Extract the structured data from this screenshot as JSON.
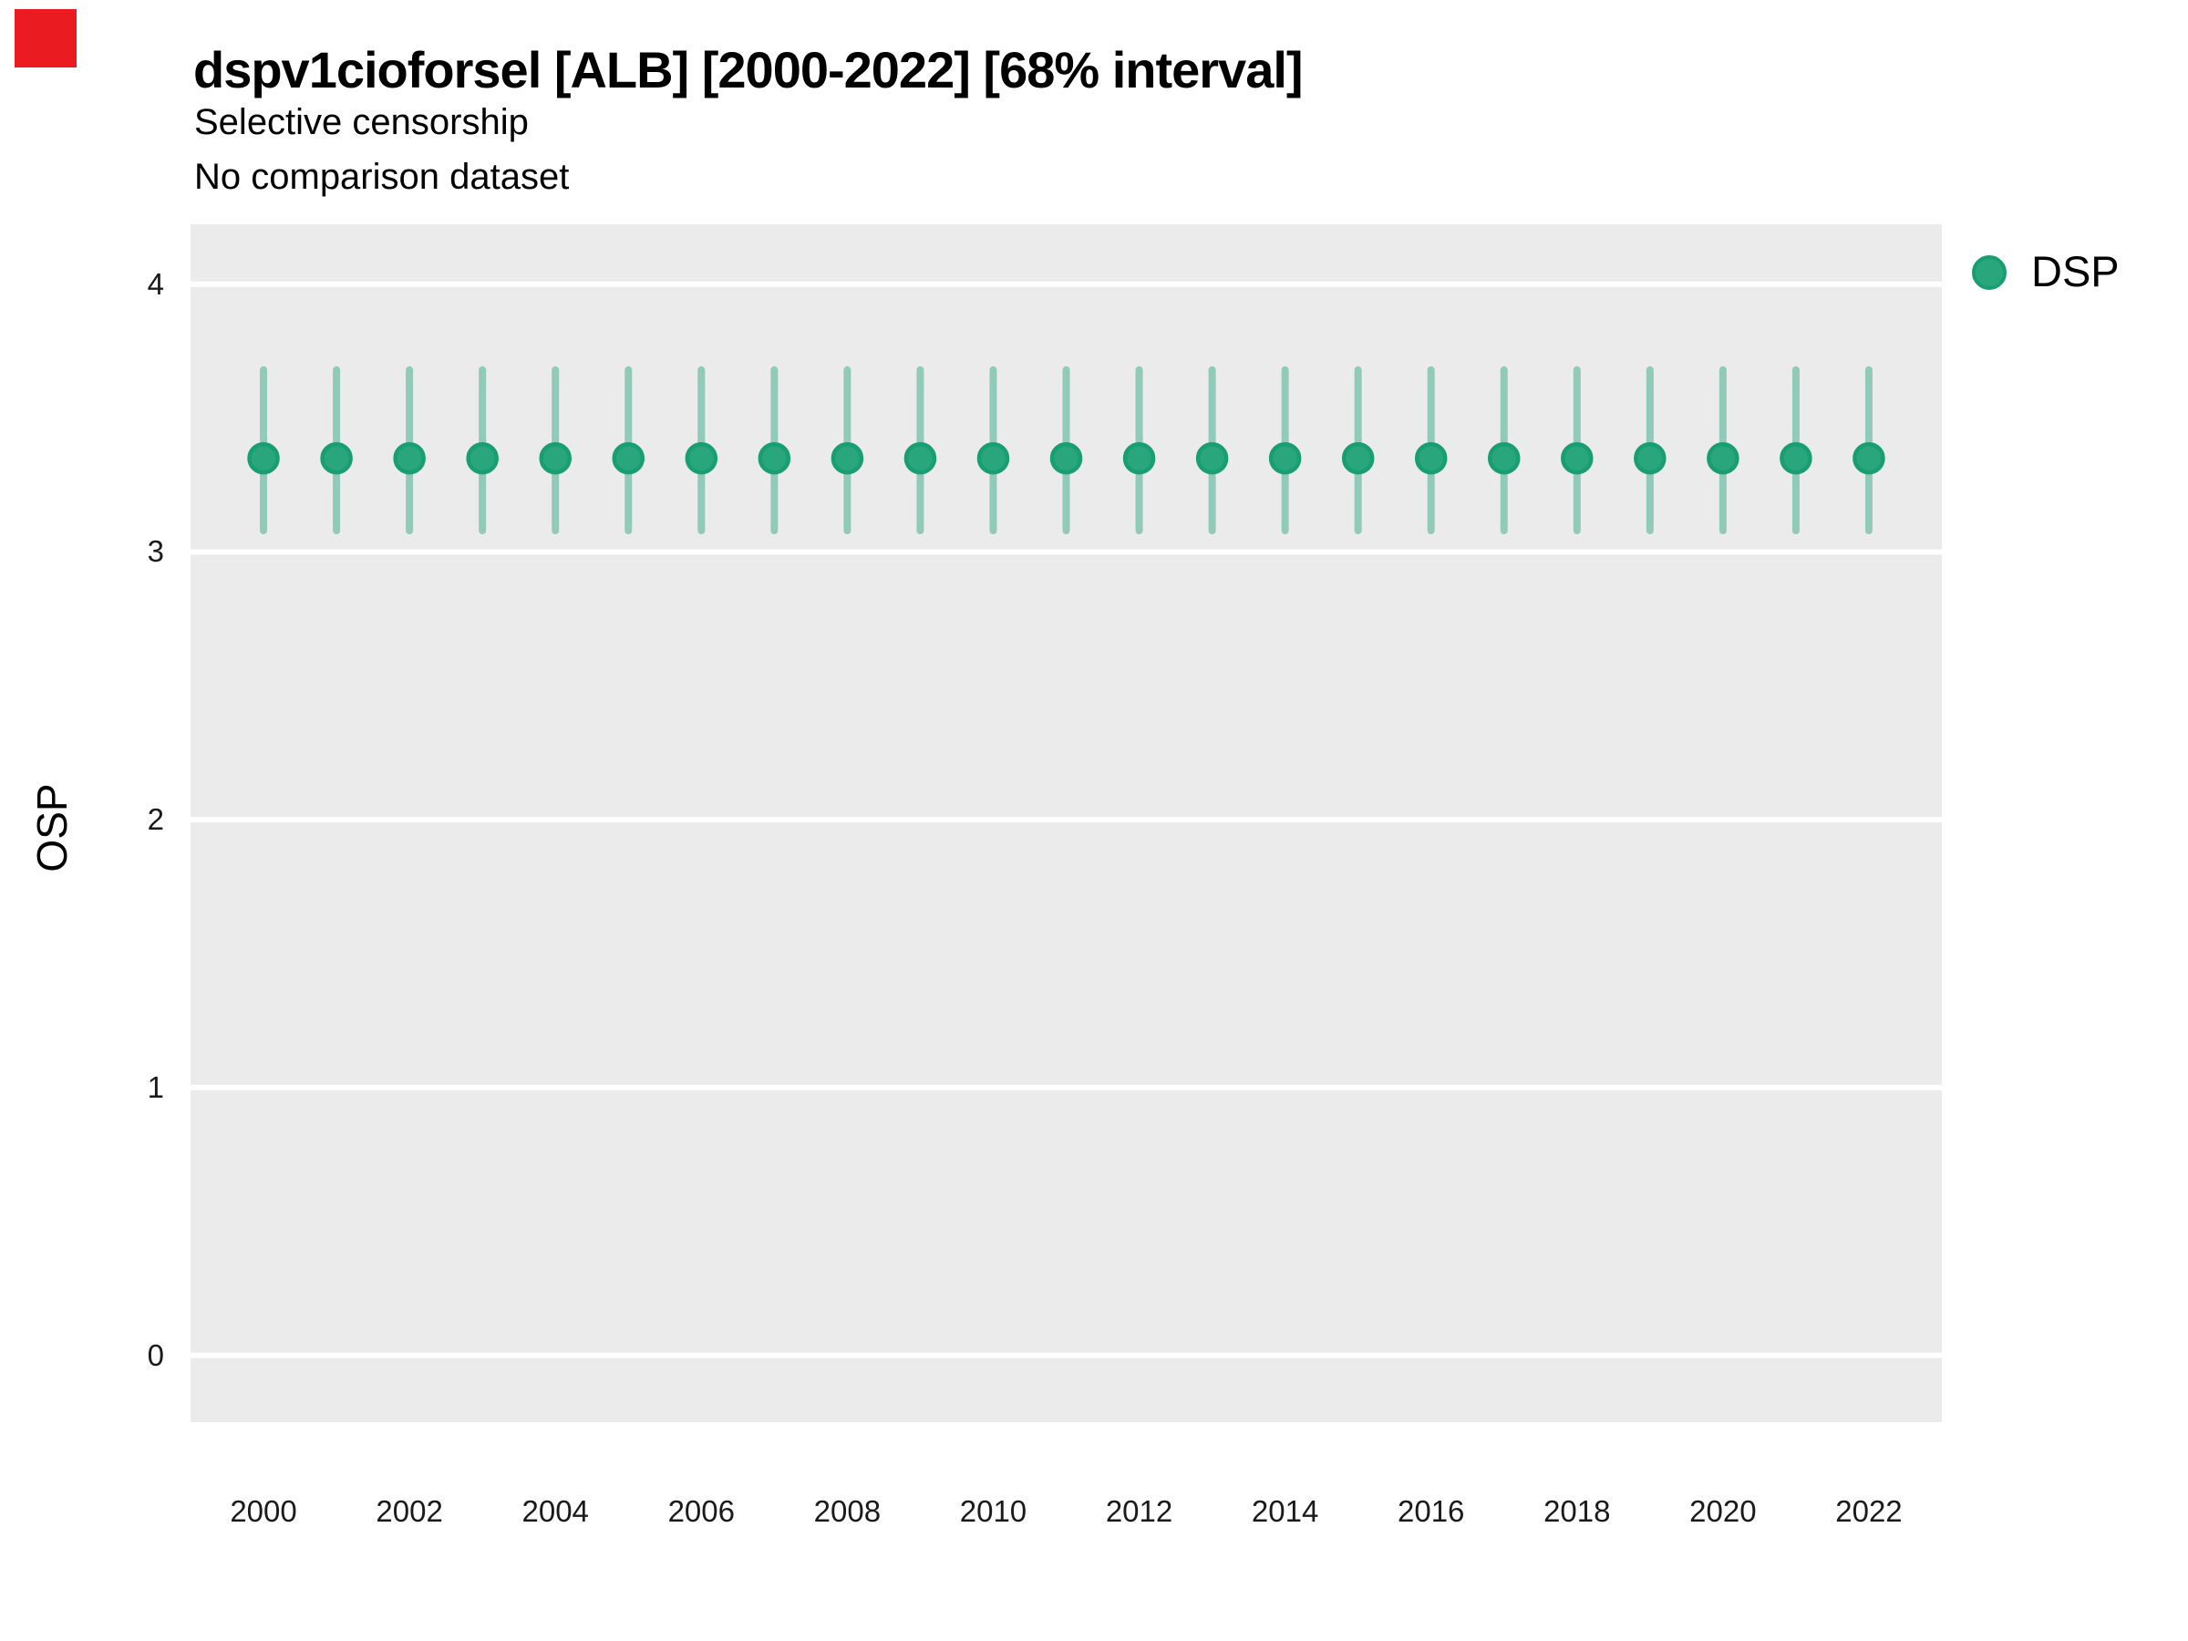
{
  "overlay_marker": {
    "color": "#ea1c22"
  },
  "header": {
    "title": "dspv1cioforsel [ALB] [2000-2022] [68% interval]",
    "subtitle1": "Selective censorship",
    "subtitle2": "No comparison dataset"
  },
  "legend": {
    "label": "DSP"
  },
  "chart_data": {
    "type": "scatter",
    "subtype": "pointrange",
    "title": "dspv1cioforsel [ALB] [2000-2022] [68% interval]",
    "subtitle": "Selective censorship",
    "subtitle2": "No comparison dataset",
    "xlabel": "",
    "ylabel": "OSP",
    "x": [
      2000,
      2001,
      2002,
      2003,
      2004,
      2005,
      2006,
      2007,
      2008,
      2009,
      2010,
      2011,
      2012,
      2013,
      2014,
      2015,
      2016,
      2017,
      2018,
      2019,
      2020,
      2021,
      2022
    ],
    "series": [
      {
        "name": "DSP",
        "values": [
          3.35,
          3.35,
          3.35,
          3.35,
          3.35,
          3.35,
          3.35,
          3.35,
          3.35,
          3.35,
          3.35,
          3.35,
          3.35,
          3.35,
          3.35,
          3.35,
          3.35,
          3.35,
          3.35,
          3.35,
          3.35,
          3.35,
          3.35
        ],
        "lower": [
          3.08,
          3.08,
          3.08,
          3.08,
          3.08,
          3.08,
          3.08,
          3.08,
          3.08,
          3.08,
          3.08,
          3.08,
          3.08,
          3.08,
          3.08,
          3.08,
          3.08,
          3.08,
          3.08,
          3.08,
          3.08,
          3.08,
          3.08
        ],
        "upper": [
          3.68,
          3.68,
          3.68,
          3.68,
          3.68,
          3.68,
          3.68,
          3.68,
          3.68,
          3.68,
          3.68,
          3.68,
          3.68,
          3.68,
          3.68,
          3.68,
          3.68,
          3.68,
          3.68,
          3.68,
          3.68,
          3.68,
          3.68
        ]
      }
    ],
    "interval_level": "68%",
    "yticks": [
      0,
      1,
      2,
      3,
      4
    ],
    "xticks": [
      2000,
      2002,
      2004,
      2006,
      2008,
      2010,
      2012,
      2014,
      2016,
      2018,
      2020,
      2022
    ],
    "ylim": [
      -0.25,
      4.224
    ],
    "xlim": [
      1999.0,
      2023.0
    ],
    "grid": "horizontal major gridlines only, white on gray panel",
    "legend_position": "right",
    "colors": {
      "panel_bg": "#ebebeb",
      "gridline": "#ffffff",
      "point_fill": "#2aa67c",
      "point_stroke": "#189e72",
      "interval_stroke": "rgba(27,158,119,0.43)",
      "series_base": "#1b9e77"
    }
  }
}
